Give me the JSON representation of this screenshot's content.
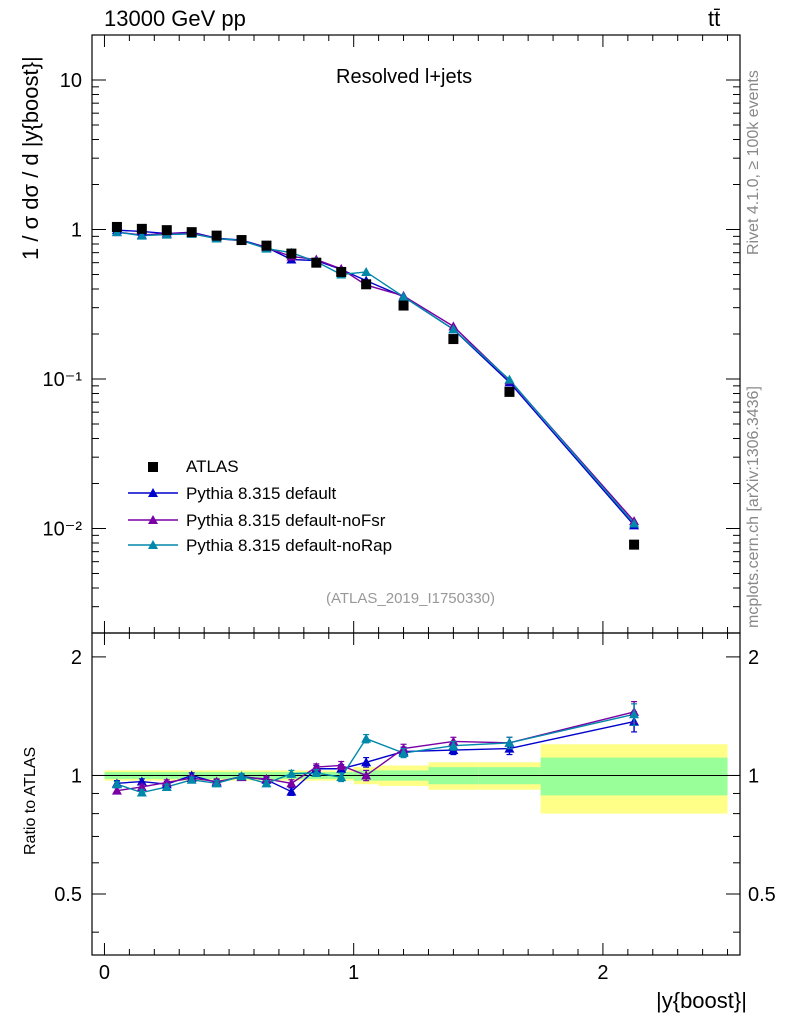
{
  "header": {
    "energy_label": "13000 GeV pp",
    "process_label": "tt̄"
  },
  "side_labels": {
    "rivet": "Rivet 4.1.0, ≥ 100k events",
    "mcplots": "mcplots.cern.ch [arXiv:1306.3436]"
  },
  "colors": {
    "data": "#000000",
    "default": "#0000cc",
    "noFsr": "#7a00a6",
    "noRap": "#0088aa",
    "band_inner": "#99ff99",
    "band_outer": "#ffff88"
  },
  "chart_data": {
    "type": "scatter",
    "title": "Resolved l+jets",
    "analysis_label": "(ATLAS_2019_I1750330)",
    "xlabel": "|y{boost}|",
    "ylabel": "1 / σ dσ / d |y{boost}|",
    "ratio_ylabel": "Ratio to ATLAS",
    "xlim": [
      -0.05,
      2.55
    ],
    "ylim_log": [
      0.002,
      20
    ],
    "ratio_ylim": [
      0.35,
      2.3
    ],
    "x_ticks": [
      "0",
      "1",
      "2"
    ],
    "main_y_ticks": [
      "10",
      "1",
      "10⁻¹",
      "10⁻²"
    ],
    "ratio_y_ticks": [
      "2",
      "1",
      "0.5"
    ],
    "bin_edges": [
      0.0,
      0.1,
      0.2,
      0.3,
      0.4,
      0.5,
      0.6,
      0.7,
      0.8,
      0.9,
      1.0,
      1.1,
      1.3,
      1.5,
      1.75,
      2.5
    ],
    "x": [
      0.05,
      0.15,
      0.25,
      0.35,
      0.45,
      0.55,
      0.65,
      0.75,
      0.85,
      0.95,
      1.05,
      1.2,
      1.4,
      1.625,
      2.125
    ],
    "data_values": [
      1.04,
      1.01,
      0.99,
      0.96,
      0.91,
      0.85,
      0.78,
      0.69,
      0.6,
      0.52,
      0.43,
      0.31,
      0.185,
      0.082,
      0.0078
    ],
    "band_inner": [
      0.02,
      0.02,
      0.02,
      0.02,
      0.02,
      0.02,
      0.02,
      0.02,
      0.02,
      0.02,
      0.03,
      0.03,
      0.05,
      0.05,
      0.11
    ],
    "band_outer": [
      0.03,
      0.03,
      0.03,
      0.03,
      0.03,
      0.03,
      0.03,
      0.03,
      0.03,
      0.03,
      0.05,
      0.06,
      0.08,
      0.08,
      0.2
    ],
    "series": [
      {
        "name": "Pythia 8.315 default",
        "key": "default",
        "values": [
          0.99,
          0.97,
          0.94,
          0.96,
          0.875,
          0.85,
          0.76,
          0.63,
          0.62,
          0.54,
          0.455,
          0.355,
          0.215,
          0.095,
          0.0105
        ],
        "ratio": [
          0.955,
          0.965,
          0.95,
          1.0,
          0.96,
          0.995,
          0.975,
          0.91,
          1.04,
          1.04,
          1.08,
          1.15,
          1.16,
          1.17,
          1.37
        ],
        "ratio_err": [
          0.015,
          0.015,
          0.015,
          0.015,
          0.015,
          0.015,
          0.015,
          0.02,
          0.02,
          0.025,
          0.03,
          0.03,
          0.03,
          0.04,
          0.08
        ]
      },
      {
        "name": "Pythia 8.315 default-noFsr",
        "key": "noFsr",
        "values": [
          0.96,
          0.92,
          0.94,
          0.95,
          0.87,
          0.84,
          0.755,
          0.66,
          0.63,
          0.545,
          0.425,
          0.36,
          0.225,
          0.098,
          0.0112
        ],
        "ratio": [
          0.915,
          0.935,
          0.96,
          0.985,
          0.965,
          0.99,
          0.98,
          0.955,
          1.05,
          1.06,
          1.0,
          1.17,
          1.22,
          1.21,
          1.45
        ],
        "ratio_err": [
          0.015,
          0.015,
          0.015,
          0.015,
          0.015,
          0.015,
          0.015,
          0.02,
          0.02,
          0.025,
          0.03,
          0.03,
          0.03,
          0.04,
          0.09
        ]
      },
      {
        "name": "Pythia 8.315 default-noRap",
        "key": "noRap",
        "values": [
          0.96,
          0.91,
          0.925,
          0.935,
          0.87,
          0.845,
          0.745,
          0.7,
          0.61,
          0.5,
          0.52,
          0.355,
          0.215,
          0.099,
          0.0108
        ],
        "ratio": [
          0.95,
          0.905,
          0.935,
          0.975,
          0.955,
          0.995,
          0.955,
          1.01,
          1.015,
          0.99,
          1.24,
          1.14,
          1.19,
          1.21,
          1.43
        ],
        "ratio_err": [
          0.015,
          0.015,
          0.015,
          0.015,
          0.015,
          0.015,
          0.015,
          0.02,
          0.02,
          0.025,
          0.03,
          0.03,
          0.03,
          0.04,
          0.09
        ]
      }
    ]
  }
}
